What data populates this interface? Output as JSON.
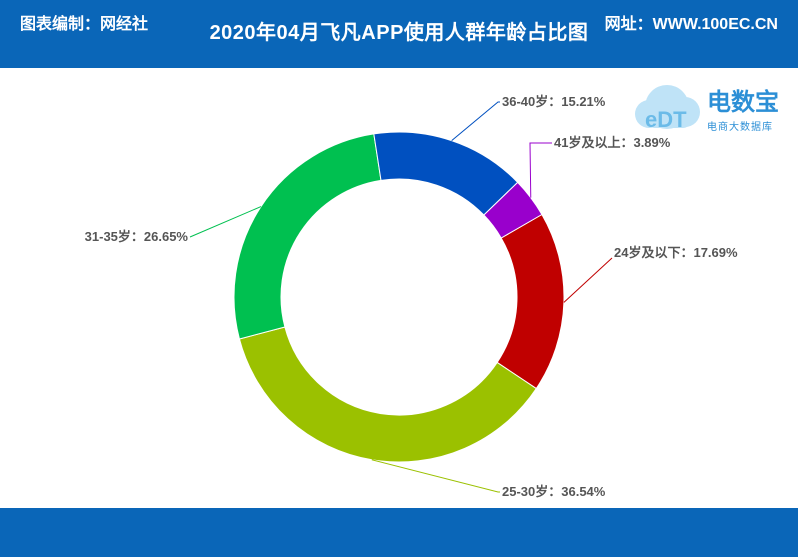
{
  "header": {
    "title": "2020年04月飞凡APP使用人群年龄占比图"
  },
  "footer": {
    "left": "图表编制：网经社",
    "right": "网址：WWW.100EC.CN"
  },
  "logo": {
    "brand": "电数宝",
    "sub": "电商大数据库",
    "mark": "eDT"
  },
  "chart_data": {
    "type": "pie",
    "donut": true,
    "title": "2020年04月飞凡APP使用人群年龄占比图",
    "slices": [
      {
        "label": "24岁及以下",
        "value": 17.69,
        "display": "24岁及以下：17.69%",
        "color": "#c00000"
      },
      {
        "label": "25-30岁",
        "value": 36.54,
        "display": "25-30岁：36.54%",
        "color": "#9bc100"
      },
      {
        "label": "31-35岁",
        "value": 26.65,
        "display": "31-35岁：26.65%",
        "color": "#00c050"
      },
      {
        "label": "36-40岁",
        "value": 15.21,
        "display": "36-40岁：15.21%",
        "color": "#0050c0"
      },
      {
        "label": "41岁及以上",
        "value": 3.89,
        "display": "41岁及以上：3.89%",
        "color": "#9900cc"
      }
    ]
  }
}
